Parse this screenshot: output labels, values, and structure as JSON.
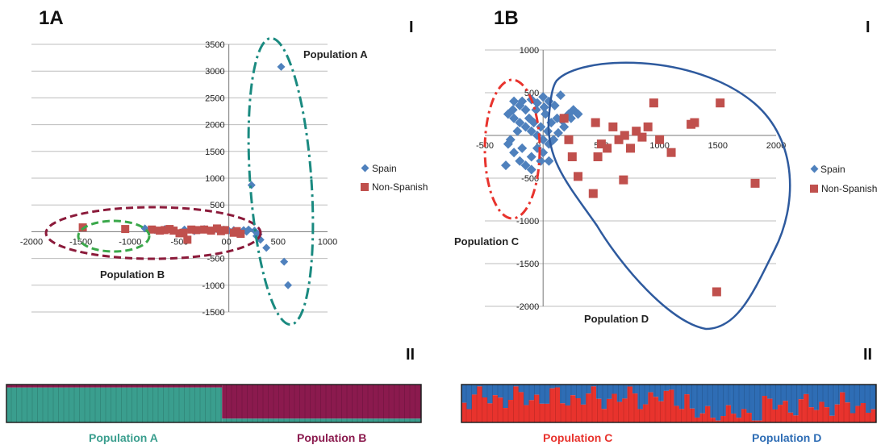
{
  "colors": {
    "spain": "#4f81bd",
    "non_spanish": "#c0504d",
    "pop_a": "#3a9e8e",
    "pop_b": "#8b1a4e",
    "pop_c": "#e8332d",
    "pop_d": "#2e6db5",
    "ellipse_b": "#8b1a3a",
    "ellipse_green": "#3aa84a",
    "ellipse_a": "#1a8a80",
    "ellipse_c": "#e8332d",
    "blob_d": "#2e5a9e"
  },
  "chart_data": [
    {
      "type": "scatter",
      "panel": "1A",
      "section": "I",
      "xlim": [
        -2000,
        1000
      ],
      "ylim": [
        -1500,
        3500
      ],
      "x_ticks": [
        -2000,
        -1500,
        -1000,
        -500,
        0,
        500,
        1000
      ],
      "y_ticks": [
        -1500,
        -1000,
        -500,
        500,
        1000,
        1500,
        2000,
        2500,
        3000,
        3500
      ],
      "grid": true,
      "legend_placement": "right",
      "series": [
        {
          "name": "Spain",
          "marker": "diamond",
          "points": [
            [
              530,
              3080
            ],
            [
              230,
              870
            ],
            [
              560,
              -560
            ],
            [
              600,
              -1000
            ],
            [
              380,
              -300
            ],
            [
              300,
              -50
            ],
            [
              320,
              -150
            ],
            [
              260,
              20
            ],
            [
              200,
              40
            ],
            [
              150,
              30
            ],
            [
              100,
              10
            ],
            [
              50,
              30
            ],
            [
              0,
              20
            ],
            [
              -50,
              40
            ],
            [
              -100,
              10
            ],
            [
              -150,
              30
            ],
            [
              -200,
              20
            ],
            [
              -250,
              40
            ],
            [
              -300,
              30
            ],
            [
              -350,
              10
            ],
            [
              -450,
              40
            ],
            [
              -550,
              20
            ],
            [
              -650,
              50
            ],
            [
              -750,
              30
            ],
            [
              -850,
              60
            ],
            [
              -250,
              50
            ],
            [
              -50,
              10
            ],
            [
              180,
              0
            ],
            [
              280,
              -80
            ]
          ]
        },
        {
          "name": "Non-Spanish",
          "marker": "square",
          "points": [
            [
              -1480,
              80
            ],
            [
              -1050,
              50
            ],
            [
              -780,
              40
            ],
            [
              -700,
              20
            ],
            [
              -650,
              30
            ],
            [
              -600,
              50
            ],
            [
              -560,
              20
            ],
            [
              -500,
              -30
            ],
            [
              -460,
              -20
            ],
            [
              -420,
              -150
            ],
            [
              -380,
              40
            ],
            [
              -330,
              30
            ],
            [
              -250,
              40
            ],
            [
              -180,
              20
            ],
            [
              -120,
              60
            ],
            [
              -80,
              10
            ],
            [
              -40,
              30
            ],
            [
              50,
              -20
            ],
            [
              80,
              10
            ],
            [
              120,
              -40
            ]
          ]
        }
      ],
      "annotations": [
        "Population A",
        "Population B"
      ]
    },
    {
      "type": "scatter",
      "panel": "1B",
      "section": "I",
      "xlim": [
        -500,
        2000
      ],
      "ylim": [
        -2000,
        1000
      ],
      "x_ticks": [
        -500,
        500,
        1000,
        1500,
        2000
      ],
      "y_ticks": [
        -2000,
        -1500,
        -1000,
        -500,
        500,
        1000
      ],
      "grid": true,
      "legend_placement": "right",
      "series": [
        {
          "name": "Spain",
          "marker": "diamond",
          "points": [
            [
              -250,
              400
            ],
            [
              -200,
              350
            ],
            [
              -150,
              300
            ],
            [
              -100,
              420
            ],
            [
              -50,
              380
            ],
            [
              0,
              450
            ],
            [
              50,
              400
            ],
            [
              100,
              350
            ],
            [
              150,
              470
            ],
            [
              -300,
              250
            ],
            [
              -250,
              200
            ],
            [
              -200,
              150
            ],
            [
              -150,
              100
            ],
            [
              -100,
              50
            ],
            [
              -50,
              0
            ],
            [
              0,
              -50
            ],
            [
              50,
              -100
            ],
            [
              -300,
              -100
            ],
            [
              -250,
              -200
            ],
            [
              -200,
              -300
            ],
            [
              -150,
              -350
            ],
            [
              -100,
              -250
            ],
            [
              -50,
              -150
            ],
            [
              0,
              -200
            ],
            [
              50,
              -300
            ],
            [
              -320,
              -350
            ],
            [
              -280,
              -50
            ],
            [
              -220,
              50
            ],
            [
              -180,
              -150
            ],
            [
              -120,
              200
            ],
            [
              -80,
              150
            ],
            [
              -20,
              100
            ],
            [
              20,
              250
            ],
            [
              70,
              150
            ],
            [
              120,
              200
            ],
            [
              180,
              100
            ],
            [
              220,
              250
            ],
            [
              260,
              300
            ],
            [
              300,
              250
            ],
            [
              -260,
              300
            ],
            [
              -180,
              400
            ],
            [
              -100,
              -400
            ],
            [
              -20,
              -300
            ],
            [
              40,
              50
            ],
            [
              90,
              -50
            ],
            [
              130,
              30
            ],
            [
              160,
              180
            ],
            [
              240,
              200
            ],
            [
              -60,
              300
            ],
            [
              10,
              330
            ]
          ]
        },
        {
          "name": "Non-Spanish",
          "marker": "square",
          "points": [
            [
              1520,
              380
            ],
            [
              950,
              380
            ],
            [
              1300,
              150
            ],
            [
              1270,
              130
            ],
            [
              450,
              150
            ],
            [
              600,
              100
            ],
            [
              700,
              0
            ],
            [
              800,
              50
            ],
            [
              850,
              -20
            ],
            [
              900,
              100
            ],
            [
              1000,
              -50
            ],
            [
              1100,
              -200
            ],
            [
              750,
              -150
            ],
            [
              650,
              -50
            ],
            [
              500,
              -100
            ],
            [
              550,
              -150
            ],
            [
              470,
              -250
            ],
            [
              300,
              -480
            ],
            [
              430,
              -680
            ],
            [
              690,
              -520
            ],
            [
              1820,
              -560
            ],
            [
              1490,
              -1830
            ],
            [
              180,
              200
            ],
            [
              220,
              -50
            ],
            [
              250,
              -250
            ]
          ]
        }
      ],
      "annotations": [
        "Population C",
        "Population D"
      ]
    }
  ],
  "panel_labels": {
    "a": "1A",
    "b": "1B"
  },
  "section_labels": {
    "a_top": "I",
    "b_top": "I",
    "a_bottom": "II",
    "b_bottom": "II"
  },
  "legend": {
    "spain": "Spain",
    "non_spanish": "Non-Spanish"
  },
  "populations": {
    "a": "Population A",
    "b": "Population B",
    "c": "Population C",
    "d": "Population D"
  },
  "structure_bars": {
    "left": {
      "pop_a_fraction": 0.92,
      "pop_a_extent": 0.52,
      "pop_a_tail": 0.1
    },
    "right": {
      "pop_d_fraction": 0.62
    }
  }
}
